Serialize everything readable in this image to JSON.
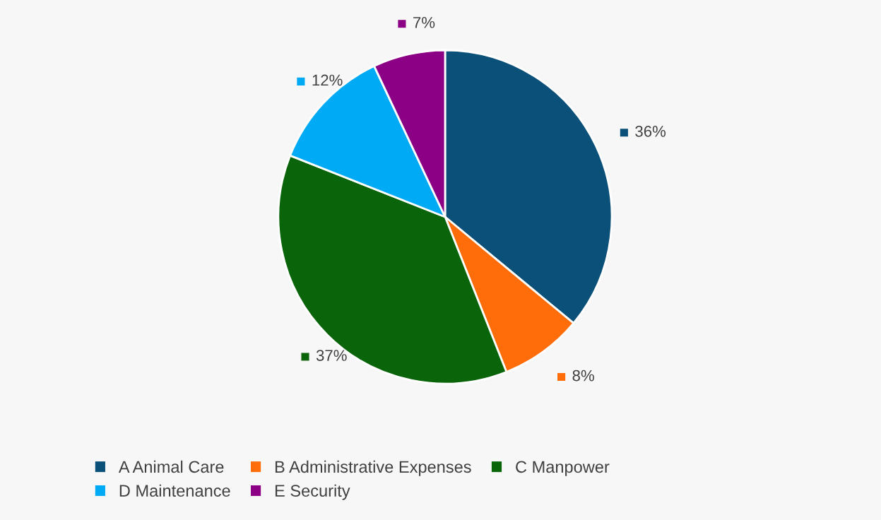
{
  "chart_data": {
    "type": "pie",
    "categories": [
      "A Animal Care",
      "B Administrative Expenses",
      "C Manpower",
      "D Maintenance",
      "E Security"
    ],
    "values": [
      36,
      8,
      37,
      12,
      7
    ],
    "colors": [
      "#0b5079",
      "#ff6d0a",
      "#0a640a",
      "#00aaf5",
      "#8c0085"
    ],
    "value_labels": [
      "36%",
      "8%",
      "37%",
      "12%",
      "7%"
    ],
    "legend": "bottom"
  }
}
